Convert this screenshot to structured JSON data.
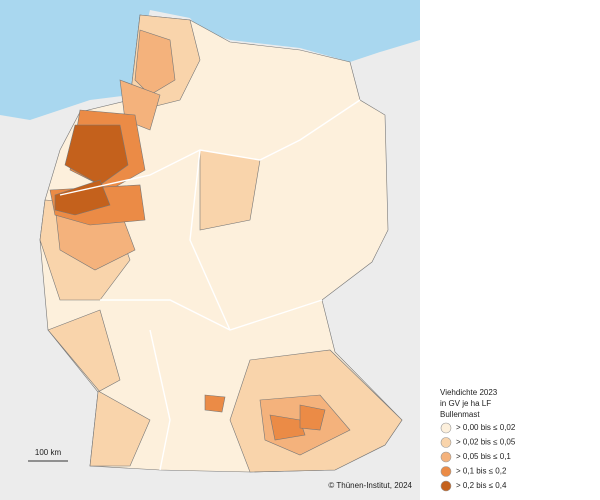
{
  "legend": {
    "title": [
      "Viehdichte 2023",
      "in GV je ha LF"
    ],
    "subtitle": "Bullenmast",
    "classes": [
      {
        "label": "> 0,00 bis ≤ 0,02",
        "color": "#fdf0dc"
      },
      {
        "label": "> 0,02 bis ≤ 0,05",
        "color": "#f9d4ab"
      },
      {
        "label": "> 0,05 bis ≤ 0,1",
        "color": "#f4b27c"
      },
      {
        "label": "> 0,1 bis ≤ 0,2",
        "color": "#eb8b46"
      },
      {
        "label": "> 0,2 bis ≤ 0,4",
        "color": "#c4611c"
      }
    ]
  },
  "scale_bar": "100 km",
  "credit": "© Thünen-Institut, 2024"
}
